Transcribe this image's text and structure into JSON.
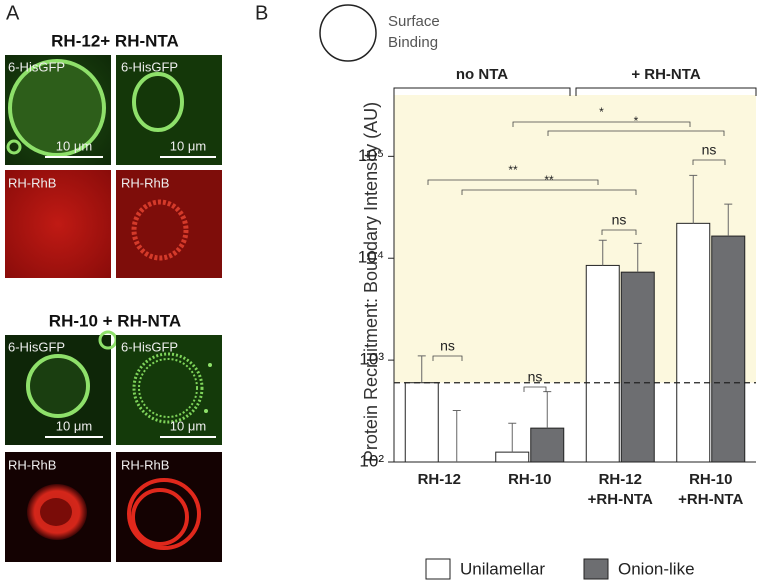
{
  "panel_a": {
    "letter": "A",
    "groups": [
      {
        "title": "RH-12+ RH-NTA",
        "gfp_labels": [
          "6-HisGFP",
          "6-HisGFP"
        ],
        "rhb_labels": [
          "RH-RhB",
          "RH-RhB"
        ],
        "scale_labels": [
          "10 μm",
          "10 μm"
        ]
      },
      {
        "title": "RH-10 + RH-NTA",
        "gfp_labels": [
          "6-HisGFP",
          "6-HisGFP"
        ],
        "rhb_labels": [
          "RH-RhB",
          "RH-RhB"
        ],
        "scale_labels": [
          "10 μm",
          "10 μm"
        ]
      }
    ]
  },
  "chart_data": {
    "type": "bar",
    "letter": "B",
    "ylabel": "Protein Recruitment: Boundary Intensity (AU)",
    "categories": [
      "RH-12",
      "RH-10",
      "RH-12",
      "RH-10"
    ],
    "category_sublabels": [
      null,
      null,
      "+RH-NTA",
      "+RH-NTA"
    ],
    "group_labels": [
      "no NTA",
      "+ RH-NTA"
    ],
    "note_lines": [
      "Surface",
      "Binding"
    ],
    "series": [
      {
        "name": "Unilamellar",
        "color": "#ffffff",
        "values": [
          600,
          125,
          8500,
          22000
        ],
        "errors": [
          500,
          115,
          6500,
          43000
        ]
      },
      {
        "name": "Onion-like",
        "color": "#6d6e71",
        "values": [
          100,
          215,
          7300,
          16500
        ],
        "errors": [
          220,
          275,
          6700,
          17500
        ]
      }
    ],
    "threshold": 600,
    "annotations": [
      "ns",
      "ns",
      "ns",
      "ns",
      "**",
      "**",
      "*",
      "*"
    ],
    "log_scale": true,
    "ylim": [
      100,
      400000
    ],
    "yticks": [
      {
        "value": 100,
        "label": "10²"
      },
      {
        "value": 1000,
        "label": "10³"
      },
      {
        "value": 10000,
        "label": "10⁴"
      },
      {
        "value": 100000,
        "label": "10⁵"
      }
    ]
  }
}
